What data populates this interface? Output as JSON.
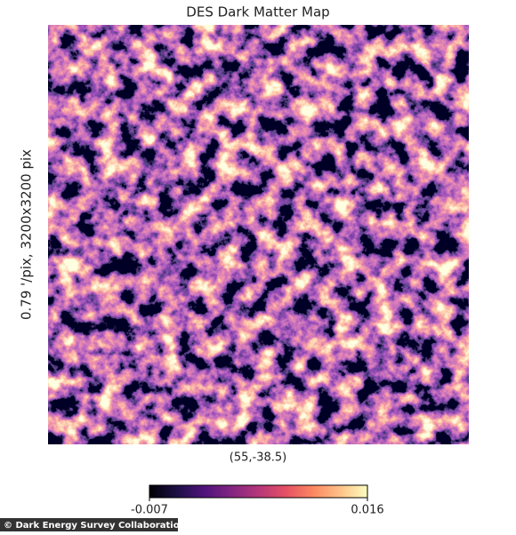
{
  "chart_data": {
    "type": "image",
    "title": "DES Dark Matter Map",
    "xlabel": "(55,-38.5)",
    "ylabel": "0.79 '/pix,  3200x3200 pix",
    "colorbar": {
      "lim": [
        -0.007,
        0.016
      ],
      "ticks": [
        -0.007,
        0.016
      ]
    },
    "credit": "© Dark Energy Survey Collaboration"
  }
}
